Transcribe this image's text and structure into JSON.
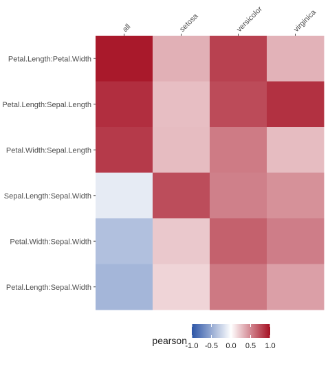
{
  "chart_data": {
    "type": "heatmap",
    "title": "",
    "xlabel": "",
    "ylabel": "",
    "columns": [
      "all",
      "setosa",
      "versicolor",
      "virginica"
    ],
    "rows": [
      "Petal.Length:Petal.Width",
      "Petal.Length:Sepal.Length",
      "Petal.Width:Sepal.Length",
      "Sepal.Length:Sepal.Width",
      "Petal.Width:Sepal.Width",
      "Petal.Length:Sepal.Width"
    ],
    "values": [
      [
        0.96,
        0.33,
        0.79,
        0.32
      ],
      [
        0.87,
        0.27,
        0.75,
        0.86
      ],
      [
        0.82,
        0.28,
        0.55,
        0.28
      ],
      [
        -0.12,
        0.74,
        0.53,
        0.46
      ],
      [
        -0.37,
        0.23,
        0.66,
        0.54
      ],
      [
        -0.43,
        0.18,
        0.56,
        0.4
      ]
    ],
    "legend": {
      "title": "pearson",
      "ticks": [
        "-1.0",
        "-0.5",
        "0.0",
        "0.5",
        "1.0"
      ],
      "range": [
        -1,
        1
      ],
      "position": "bottom"
    },
    "colors": {
      "low": "#2c55a6",
      "mid": "#ffffff",
      "high": "#a50f22"
    },
    "grid": false
  }
}
